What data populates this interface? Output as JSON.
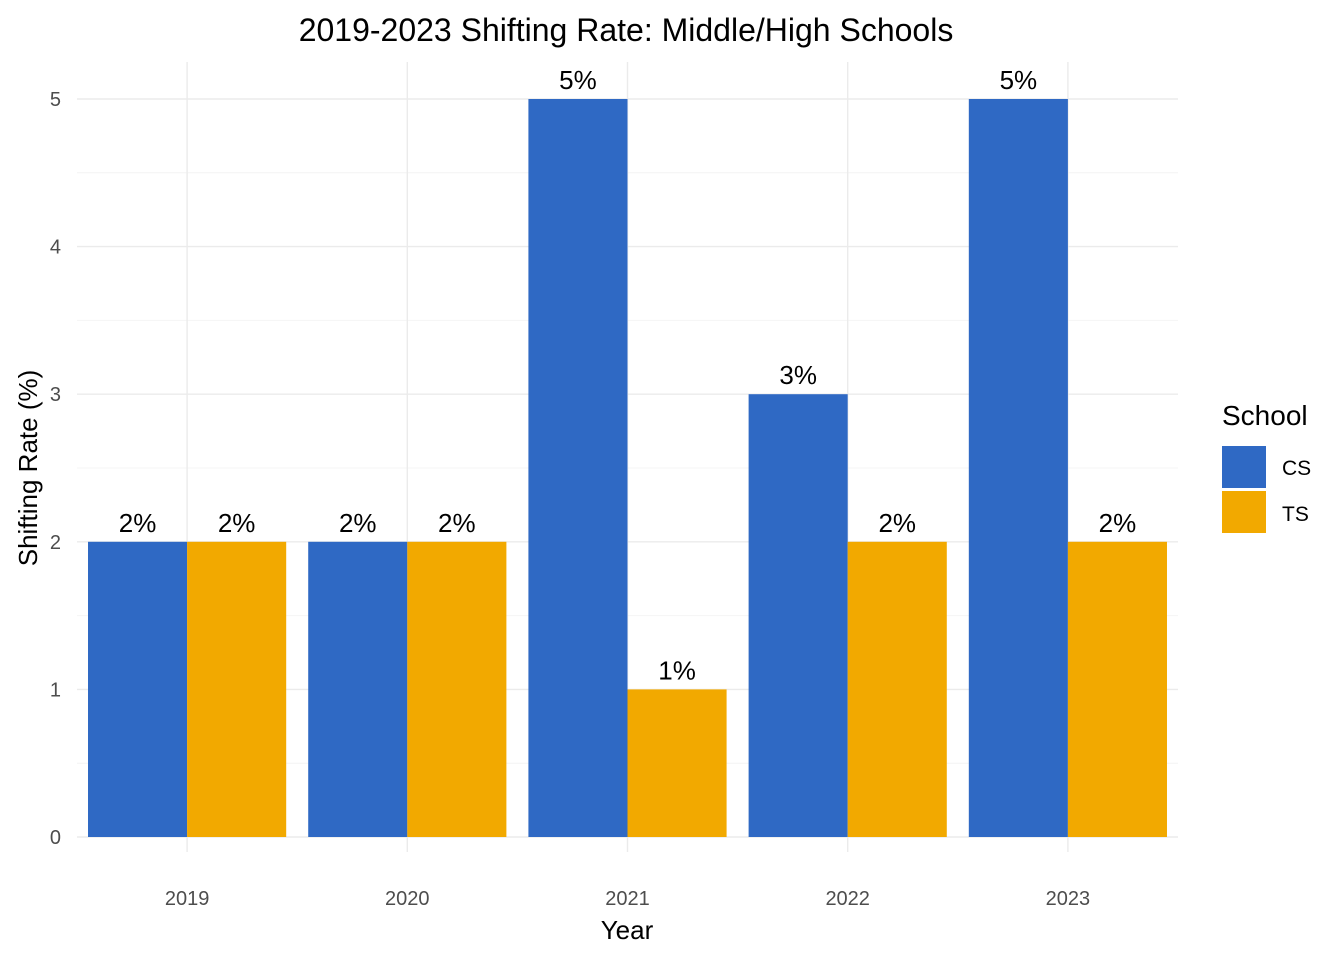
{
  "chart_data": {
    "type": "bar",
    "title": "2019-2023 Shifting Rate: Middle/High Schools",
    "xlabel": "Year",
    "ylabel": "Shifting Rate (%)",
    "categories": [
      "2019",
      "2020",
      "2021",
      "2022",
      "2023"
    ],
    "series": [
      {
        "name": "CS",
        "color": "#2f69c4",
        "values": [
          2,
          2,
          5,
          3,
          5
        ],
        "labels": [
          "2%",
          "2%",
          "5%",
          "3%",
          "5%"
        ]
      },
      {
        "name": "TS",
        "color": "#f2a900",
        "values": [
          2,
          2,
          1,
          2,
          2
        ],
        "labels": [
          "2%",
          "2%",
          "1%",
          "2%",
          "2%"
        ]
      }
    ],
    "ylim": [
      0,
      5
    ],
    "yticks": [
      "0",
      "1",
      "2",
      "3",
      "4",
      "5"
    ],
    "grid": true,
    "legend": {
      "title": "School",
      "position": "right"
    }
  }
}
